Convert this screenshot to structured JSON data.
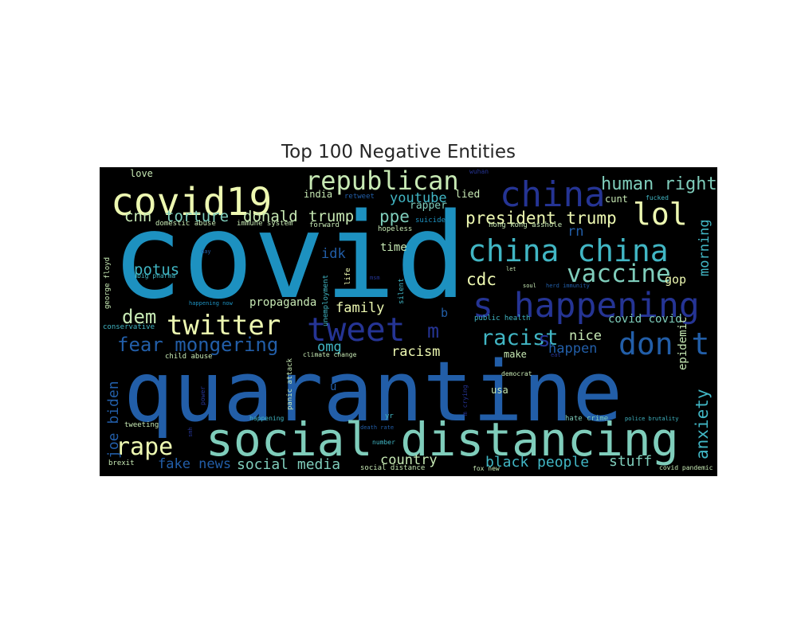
{
  "chart_data": {
    "type": "wordcloud",
    "title": "Top 100 Negative Entities",
    "background": "#000000",
    "colormap": [
      "#edf8b1",
      "#c7e9b4",
      "#7fcdbb",
      "#41b6c4",
      "#1d91c0",
      "#225ea8",
      "#253494"
    ],
    "words": [
      {
        "text": "covid",
        "color": "#1d91c0"
      },
      {
        "text": "quarantine",
        "color": "#225ea8"
      },
      {
        "text": "social distancing",
        "color": "#7fcdbb"
      },
      {
        "text": "covid19",
        "color": "#edf8b1"
      },
      {
        "text": "republican",
        "color": "#c7e9b4"
      },
      {
        "text": "china",
        "color": "#253494"
      },
      {
        "text": "lol",
        "color": "#edf8b1"
      },
      {
        "text": "china china",
        "color": "#41b6c4"
      },
      {
        "text": "s happening",
        "color": "#253494"
      },
      {
        "text": "vaccine",
        "color": "#7fcdbb"
      },
      {
        "text": "tweet",
        "color": "#253494"
      },
      {
        "text": "don t",
        "color": "#225ea8"
      },
      {
        "text": "twitter",
        "color": "#edf8b1"
      },
      {
        "text": "rape",
        "color": "#edf8b1"
      },
      {
        "text": "fear mongering",
        "color": "#225ea8"
      },
      {
        "text": "dem",
        "color": "#c7e9b4"
      },
      {
        "text": "racist",
        "color": "#41b6c4"
      },
      {
        "text": "human right",
        "color": "#7fcdbb"
      },
      {
        "text": "president trump",
        "color": "#edf8b1"
      },
      {
        "text": "cdc",
        "color": "#edf8b1"
      },
      {
        "text": "potus",
        "color": "#41b6c4"
      },
      {
        "text": "donald",
        "color": "#c7e9b4"
      },
      {
        "text": "trump",
        "color": "#c7e9b4"
      },
      {
        "text": "cnn",
        "color": "#c7e9b4"
      },
      {
        "text": "torture",
        "color": "#7fcdbb"
      },
      {
        "text": "ppe",
        "color": "#7fcdbb"
      },
      {
        "text": "youtube",
        "color": "#41b6c4"
      },
      {
        "text": "m",
        "color": "#253494"
      },
      {
        "text": "anxiety",
        "color": "#41b6c4"
      },
      {
        "text": "morning",
        "color": "#41b6c4"
      },
      {
        "text": "joe biden",
        "color": "#225ea8"
      },
      {
        "text": "social media",
        "color": "#7fcdbb"
      },
      {
        "text": "black people",
        "color": "#41b6c4"
      },
      {
        "text": "stuff",
        "color": "#7fcdbb"
      },
      {
        "text": "country",
        "color": "#c7e9b4"
      },
      {
        "text": "fake news",
        "color": "#225ea8"
      },
      {
        "text": "happen",
        "color": "#225ea8"
      },
      {
        "text": "racism",
        "color": "#edf8b1"
      },
      {
        "text": "nice",
        "color": "#c7e9b4"
      },
      {
        "text": "omg",
        "color": "#41b6c4"
      },
      {
        "text": "family",
        "color": "#edf8b1"
      },
      {
        "text": "idk",
        "color": "#225ea8"
      },
      {
        "text": "rn",
        "color": "#225ea8"
      },
      {
        "text": "gop",
        "color": "#edf8b1"
      },
      {
        "text": "covid covid",
        "color": "#7fcdbb"
      },
      {
        "text": "epidemic",
        "color": "#c7e9b4"
      },
      {
        "text": "propaganda",
        "color": "#c7e9b4"
      },
      {
        "text": "time",
        "color": "#c7e9b4"
      },
      {
        "text": "lied",
        "color": "#c7e9b4"
      },
      {
        "text": "rapper",
        "color": "#7fcdbb"
      },
      {
        "text": "india",
        "color": "#c7e9b4"
      },
      {
        "text": "love",
        "color": "#c7e9b4"
      },
      {
        "text": "cunt",
        "color": "#c7e9b4"
      },
      {
        "text": "make",
        "color": "#c7e9b4"
      },
      {
        "text": "usa",
        "color": "#c7e9b4"
      },
      {
        "text": "u",
        "color": "#225ea8"
      },
      {
        "text": "b",
        "color": "#225ea8"
      },
      {
        "text": "retweet",
        "color": "#225ea8"
      },
      {
        "text": "suicide",
        "color": "#1d91c0"
      },
      {
        "text": "forward",
        "color": "#c7e9b4"
      },
      {
        "text": "hopeless",
        "color": "#c7e9b4"
      },
      {
        "text": "hong kong asshole",
        "color": "#c7e9b4"
      },
      {
        "text": "fucked",
        "color": "#41b6c4"
      },
      {
        "text": "wuhan",
        "color": "#253494"
      },
      {
        "text": "domestic abuse",
        "color": "#c7e9b4"
      },
      {
        "text": "immune system",
        "color": "#c7e9b4"
      },
      {
        "text": "george floyd",
        "color": "#c7e9b4"
      },
      {
        "text": "big pharma",
        "color": "#41b6c4"
      },
      {
        "text": "day",
        "color": "#225ea8"
      },
      {
        "text": "life",
        "color": "#edf8b1"
      },
      {
        "text": "msm",
        "color": "#253494"
      },
      {
        "text": "unemployment",
        "color": "#41b6c4"
      },
      {
        "text": "silent",
        "color": "#41b6c4"
      },
      {
        "text": "let",
        "color": "#c7e9b4"
      },
      {
        "text": "soul",
        "color": "#c7e9b4"
      },
      {
        "text": "herd immunity",
        "color": "#225ea8"
      },
      {
        "text": "happening now",
        "color": "#1d91c0"
      },
      {
        "text": "conservative",
        "color": "#41b6c4"
      },
      {
        "text": "child abuse",
        "color": "#c7e9b4"
      },
      {
        "text": "public health",
        "color": "#41b6c4"
      },
      {
        "text": "eat",
        "color": "#253494"
      },
      {
        "text": "climate change",
        "color": "#c7e9b4"
      },
      {
        "text": "panic attack",
        "color": "#c7e9b4"
      },
      {
        "text": "power",
        "color": "#253494"
      },
      {
        "text": "democrat",
        "color": "#c7e9b4"
      },
      {
        "text": "m crying",
        "color": "#253494"
      },
      {
        "text": "tweeting",
        "color": "#c7e9b4"
      },
      {
        "text": "happening",
        "color": "#41b6c4"
      },
      {
        "text": "smh",
        "color": "#253494"
      },
      {
        "text": "death rate",
        "color": "#225ea8"
      },
      {
        "text": "yr",
        "color": "#41b6c4"
      },
      {
        "text": "number",
        "color": "#41b6c4"
      },
      {
        "text": "hate crime",
        "color": "#7fcdbb"
      },
      {
        "text": "police brutality",
        "color": "#41b6c4"
      },
      {
        "text": "mental health",
        "color": "#225ea8"
      },
      {
        "text": "brexit",
        "color": "#c7e9b4"
      },
      {
        "text": "social distance",
        "color": "#c7e9b4"
      },
      {
        "text": "fox new",
        "color": "#c7e9b4"
      },
      {
        "text": "covid pandemic",
        "color": "#c7e9b4"
      },
      {
        "text": "s",
        "color": "#253494"
      }
    ]
  }
}
